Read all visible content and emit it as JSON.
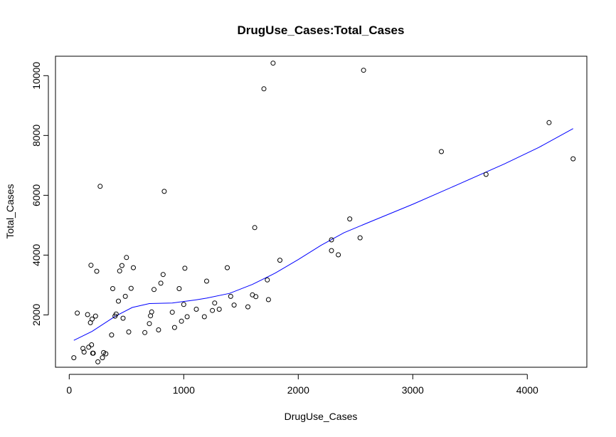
{
  "chart_data": {
    "type": "scatter",
    "title": "DrugUse_Cases:Total_Cases",
    "xlabel": "DrugUse_Cases",
    "ylabel": "Total_Cases",
    "xlim": [
      -120,
      4520
    ],
    "ylim": [
      250,
      10650
    ],
    "x_ticks": [
      0,
      1000,
      2000,
      3000,
      4000
    ],
    "y_ticks": [
      2000,
      4000,
      6000,
      8000,
      10000
    ],
    "grid": false,
    "legend": "none",
    "point_color": "#000000",
    "line_color": "#0000ff",
    "points": [
      [
        40,
        570
      ],
      [
        70,
        2060
      ],
      [
        120,
        880
      ],
      [
        130,
        760
      ],
      [
        160,
        2010
      ],
      [
        170,
        920
      ],
      [
        185,
        1740
      ],
      [
        190,
        3660
      ],
      [
        195,
        1000
      ],
      [
        200,
        1860
      ],
      [
        205,
        720
      ],
      [
        210,
        720
      ],
      [
        230,
        1960
      ],
      [
        240,
        3460
      ],
      [
        250,
        430
      ],
      [
        270,
        6300
      ],
      [
        290,
        570
      ],
      [
        300,
        740
      ],
      [
        320,
        700
      ],
      [
        370,
        1330
      ],
      [
        380,
        2880
      ],
      [
        400,
        1960
      ],
      [
        410,
        2030
      ],
      [
        430,
        2460
      ],
      [
        440,
        3470
      ],
      [
        460,
        3650
      ],
      [
        470,
        1890
      ],
      [
        490,
        2620
      ],
      [
        500,
        3920
      ],
      [
        520,
        1430
      ],
      [
        540,
        2890
      ],
      [
        560,
        3580
      ],
      [
        660,
        1410
      ],
      [
        700,
        1710
      ],
      [
        710,
        1970
      ],
      [
        720,
        2100
      ],
      [
        740,
        2850
      ],
      [
        780,
        1500
      ],
      [
        800,
        3060
      ],
      [
        820,
        3350
      ],
      [
        830,
        6130
      ],
      [
        900,
        2090
      ],
      [
        920,
        1580
      ],
      [
        960,
        2880
      ],
      [
        980,
        1790
      ],
      [
        1000,
        2350
      ],
      [
        1010,
        3560
      ],
      [
        1030,
        1940
      ],
      [
        1110,
        2190
      ],
      [
        1180,
        1940
      ],
      [
        1200,
        3130
      ],
      [
        1250,
        2150
      ],
      [
        1270,
        2400
      ],
      [
        1310,
        2190
      ],
      [
        1380,
        3580
      ],
      [
        1410,
        2620
      ],
      [
        1440,
        2330
      ],
      [
        1560,
        2270
      ],
      [
        1600,
        2670
      ],
      [
        1620,
        4920
      ],
      [
        1630,
        2610
      ],
      [
        1700,
        9560
      ],
      [
        1730,
        3170
      ],
      [
        1740,
        2510
      ],
      [
        1780,
        10420
      ],
      [
        1840,
        3830
      ],
      [
        2290,
        4510
      ],
      [
        2290,
        4150
      ],
      [
        2350,
        4010
      ],
      [
        2450,
        5210
      ],
      [
        2540,
        4580
      ],
      [
        2570,
        10180
      ],
      [
        3250,
        7460
      ],
      [
        3640,
        6700
      ],
      [
        4190,
        8430
      ],
      [
        4400,
        7220
      ]
    ],
    "smooth_line": [
      [
        40,
        1150
      ],
      [
        200,
        1450
      ],
      [
        400,
        1950
      ],
      [
        550,
        2250
      ],
      [
        700,
        2380
      ],
      [
        900,
        2400
      ],
      [
        1100,
        2500
      ],
      [
        1200,
        2560
      ],
      [
        1400,
        2720
      ],
      [
        1600,
        3020
      ],
      [
        1800,
        3400
      ],
      [
        2000,
        3850
      ],
      [
        2200,
        4330
      ],
      [
        2400,
        4750
      ],
      [
        2600,
        5070
      ],
      [
        3000,
        5700
      ],
      [
        3400,
        6370
      ],
      [
        3800,
        7050
      ],
      [
        4100,
        7600
      ],
      [
        4400,
        8230
      ]
    ]
  }
}
